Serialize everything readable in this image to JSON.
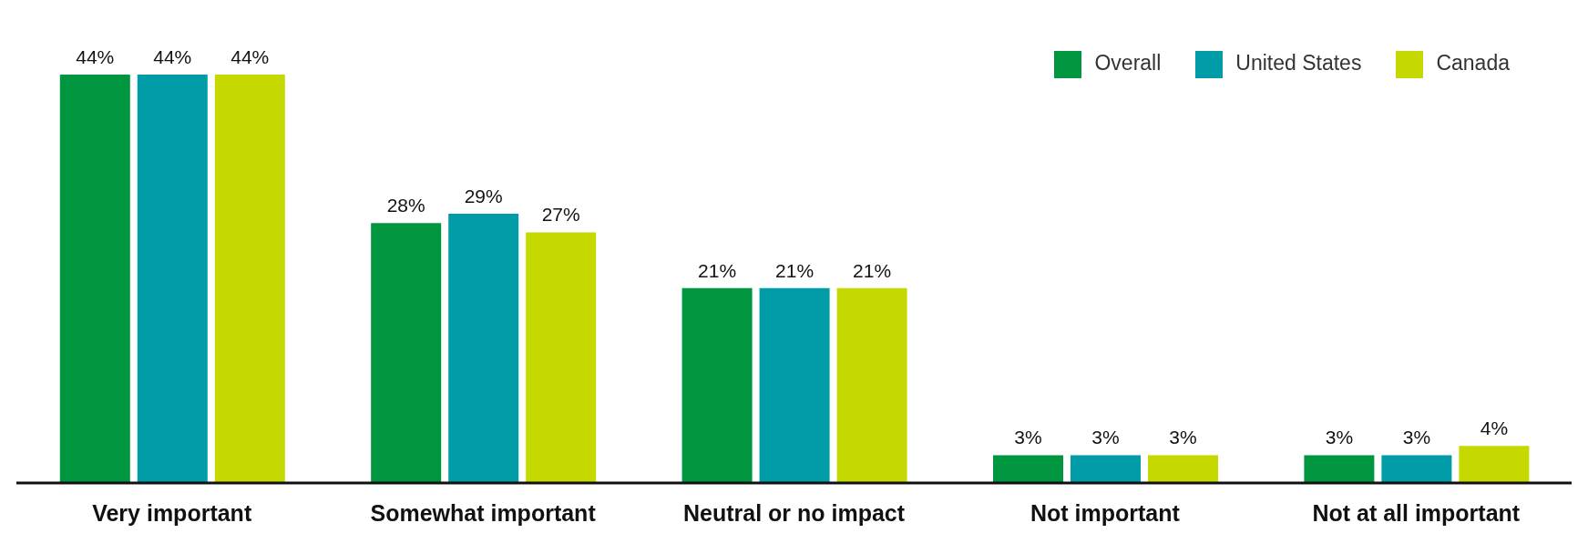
{
  "chart_data": {
    "type": "bar",
    "categories": [
      "Very important",
      "Somewhat important",
      "Neutral or no impact",
      "Not important",
      "Not at all important"
    ],
    "series": [
      {
        "name": "Overall",
        "color": "#00963f",
        "values": [
          44,
          28,
          21,
          3,
          3
        ],
        "value_labels": [
          "44%",
          "28%",
          "21%",
          "3%",
          "3%"
        ]
      },
      {
        "name": "United States",
        "color": "#009ca8",
        "values": [
          44,
          29,
          21,
          3,
          3
        ],
        "value_labels": [
          "44%",
          "29%",
          "21%",
          "3%",
          "3%"
        ]
      },
      {
        "name": "Canada",
        "color": "#c5d800",
        "values": [
          44,
          27,
          21,
          3,
          4
        ],
        "value_labels": [
          "44%",
          "27%",
          "21%",
          "3%",
          "4%"
        ]
      }
    ],
    "legend": "top right",
    "grid": false
  }
}
